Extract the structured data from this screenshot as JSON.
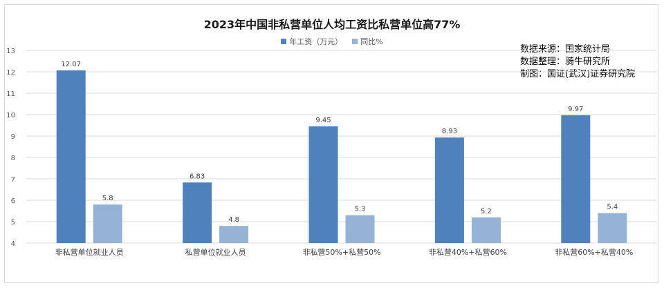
{
  "title": "2023年中国非私营单位人均工资比私营单位高77%",
  "source_lines": [
    "数据来源：国家统计局",
    "数据整理：骑牛研究所",
    "制图：国证(武汉)证券研究院"
  ],
  "colors": {
    "series1": "#4f81bd",
    "series2": "#95b3d7"
  },
  "chart_data": {
    "type": "bar",
    "categories": [
      "非私营单位就业人员",
      "私营单位就业人员",
      "非私营50%+私营50%",
      "非私营40%+私营60%",
      "非私营60%+私营40%"
    ],
    "series": [
      {
        "name": "年工资（万元）",
        "values": [
          12.07,
          6.83,
          9.45,
          8.93,
          9.97
        ],
        "labels": [
          "12.07",
          "6.83",
          "9.45",
          "8.93",
          "9.97"
        ]
      },
      {
        "name": "同比%",
        "values": [
          5.8,
          4.8,
          5.3,
          5.2,
          5.4
        ],
        "labels": [
          "5.8",
          "4.8",
          "5.3",
          "5.2",
          "5.4"
        ]
      }
    ],
    "ylim": [
      4,
      13
    ],
    "yticks": [
      "4",
      "5",
      "6",
      "7",
      "8",
      "9",
      "10",
      "11",
      "12",
      "13"
    ],
    "grid": true,
    "legend": "top-center"
  }
}
